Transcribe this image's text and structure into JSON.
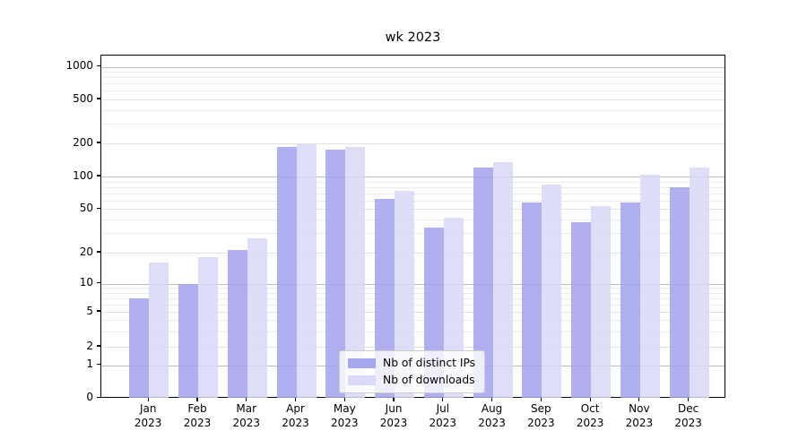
{
  "title": "wk 2023",
  "chart_data": {
    "type": "bar",
    "title": "wk 2023",
    "categories": [
      "Jan 2023",
      "Feb 2023",
      "Mar 2023",
      "Apr 2023",
      "May 2023",
      "Jun 2023",
      "Jul 2023",
      "Aug 2023",
      "Sep 2023",
      "Oct 2023",
      "Nov 2023",
      "Dec 2023"
    ],
    "series": [
      {
        "name": "Nb of distinct IPs",
        "color": "#a2a2ee",
        "values": [
          7,
          10,
          21,
          187,
          176,
          62,
          34,
          120,
          57,
          38,
          57,
          80
        ]
      },
      {
        "name": "Nb of downloads",
        "color": "#d8d8f8",
        "values": [
          16,
          18,
          27,
          196,
          187,
          74,
          42,
          135,
          85,
          53,
          104,
          121
        ]
      }
    ],
    "xlabel": "",
    "ylabel": "",
    "yscale": "symlog",
    "yticks": [
      0,
      1,
      2,
      5,
      10,
      20,
      50,
      100,
      200,
      500,
      1000
    ],
    "ylim": [
      0,
      1250
    ],
    "grid": true,
    "legend_position": "lower center",
    "background_color": "#ffffff",
    "gridline_major_values": [
      1,
      10,
      100,
      1000
    ],
    "gridline_minor_values": [
      3,
      4,
      6,
      7,
      8,
      9,
      30,
      40,
      60,
      70,
      80,
      90,
      300,
      400,
      600,
      700,
      800,
      900
    ]
  },
  "legend": {
    "items": [
      {
        "label": "Nb of distinct IPs",
        "color": "#a2a2ee"
      },
      {
        "label": "Nb of downloads",
        "color": "#d8d8f8"
      }
    ]
  }
}
